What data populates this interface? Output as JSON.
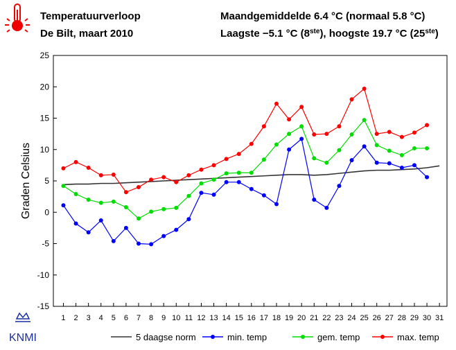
{
  "chart_data": {
    "type": "line",
    "title": "Temperatuurverloop",
    "subtitle": "De Bilt, maart 2010",
    "annotations": [
      [
        "Maandgemiddelde 6.4 °C (normaal 5.8 °C)"
      ],
      [
        "Laagste −5.1 °C (8",
        "ste",
        "), hoogste 19.7 °C (25",
        "ste",
        ")"
      ]
    ],
    "logo_text": "KNMI",
    "y_label": "Graden Celsius",
    "x": [
      1,
      2,
      3,
      4,
      5,
      6,
      7,
      8,
      9,
      10,
      11,
      12,
      13,
      14,
      15,
      16,
      17,
      18,
      19,
      20,
      21,
      22,
      23,
      24,
      25,
      26,
      27,
      28,
      29,
      30,
      31
    ],
    "xlim": [
      0.2,
      31.6
    ],
    "xticks": [
      1,
      2,
      3,
      4,
      5,
      6,
      7,
      8,
      9,
      10,
      11,
      12,
      13,
      14,
      15,
      16,
      17,
      18,
      19,
      20,
      21,
      22,
      23,
      24,
      25,
      26,
      27,
      28,
      29,
      30,
      31
    ],
    "ylim": [
      -15,
      25
    ],
    "yticks": [
      -15,
      -10,
      -5,
      0,
      5,
      10,
      15,
      20,
      25
    ],
    "series": [
      {
        "name": "5 daagse norm",
        "color": "#333333",
        "markers": false,
        "values": [
          4.4,
          4.5,
          4.5,
          4.6,
          4.6,
          4.7,
          4.8,
          4.9,
          5.0,
          5.1,
          5.2,
          5.3,
          5.4,
          5.5,
          5.6,
          5.7,
          5.8,
          5.9,
          6.0,
          6.0,
          5.9,
          6.0,
          6.2,
          6.4,
          6.6,
          6.7,
          6.7,
          6.8,
          6.9,
          7.1,
          7.4
        ]
      },
      {
        "name": "min. temp",
        "color": "#0000ff",
        "markers": true,
        "values": [
          1.1,
          -1.8,
          -3.2,
          -1.3,
          -4.6,
          -2.5,
          -5.0,
          -5.1,
          -3.8,
          -2.8,
          -1.1,
          3.1,
          2.8,
          4.8,
          4.8,
          3.7,
          2.7,
          1.3,
          10.0,
          11.7,
          2.0,
          0.7,
          4.2,
          8.3,
          10.5,
          7.9,
          7.8,
          7.1,
          7.5,
          5.6,
          null
        ]
      },
      {
        "name": "gem. temp",
        "color": "#00dd00",
        "markers": true,
        "values": [
          4.2,
          2.9,
          2.0,
          1.5,
          1.7,
          0.8,
          -1.0,
          0.1,
          0.5,
          0.7,
          2.6,
          4.6,
          5.2,
          6.2,
          6.3,
          6.3,
          8.4,
          10.8,
          12.5,
          13.7,
          8.6,
          7.9,
          9.9,
          12.4,
          14.7,
          10.7,
          9.8,
          9.1,
          10.2,
          10.2,
          null
        ]
      },
      {
        "name": "max. temp",
        "color": "#ff0000",
        "markers": true,
        "values": [
          7.0,
          8.0,
          7.1,
          5.9,
          6.0,
          3.2,
          4.0,
          5.2,
          5.6,
          4.8,
          5.9,
          6.8,
          7.5,
          8.5,
          9.3,
          10.9,
          13.7,
          17.3,
          14.8,
          16.8,
          12.4,
          12.5,
          13.7,
          18.0,
          19.7,
          12.5,
          12.8,
          12.0,
          12.7,
          13.9,
          null
        ]
      }
    ]
  }
}
